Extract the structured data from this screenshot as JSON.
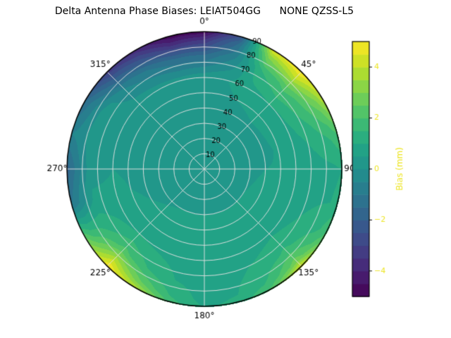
{
  "chart_data": {
    "type": "heatmap",
    "projection": "polar",
    "title": "Delta Antenna Phase Biases: LEIAT504GG      NONE QZSS-L5",
    "azimuth_tick_labels": [
      "0°",
      "45°",
      "90°",
      "135°",
      "180°",
      "225°",
      "270°",
      "315°"
    ],
    "azimuth_tick_angles": [
      0,
      45,
      90,
      135,
      180,
      225,
      270,
      315
    ],
    "radial_tick_labels": [
      "10",
      "20",
      "30",
      "40",
      "50",
      "60",
      "70",
      "80",
      "90"
    ],
    "radial_tick_values": [
      10,
      20,
      30,
      40,
      50,
      60,
      70,
      80,
      90
    ],
    "radial_range": [
      0,
      90
    ],
    "radial_label_angle_deg": 22.5,
    "grid_on": true,
    "colorbar": {
      "label": "Bias (mm)",
      "tick_labels": [
        "−4",
        "−2",
        "0",
        "2",
        "4"
      ],
      "tick_values": [
        -4,
        -2,
        0,
        2,
        4
      ],
      "range": [
        -5,
        5
      ],
      "level_step": 0.5,
      "position": "right"
    },
    "colormap": {
      "name": "viridis",
      "stops": [
        "#440154",
        "#482475",
        "#414487",
        "#355f8d",
        "#2a788e",
        "#21918c",
        "#22a884",
        "#44bf70",
        "#7ad151",
        "#bddf26",
        "#fde725"
      ]
    },
    "grid": {
      "azimuth_deg": [
        0,
        15,
        30,
        45,
        60,
        75,
        90,
        105,
        120,
        135,
        150,
        165,
        180,
        195,
        210,
        225,
        240,
        255,
        270,
        285,
        300,
        315,
        330,
        345,
        360
      ],
      "radius": [
        0,
        20,
        40,
        60,
        75,
        85,
        90
      ],
      "bias_mm": [
        [
          0.3,
          0.3,
          0.3,
          0.3,
          0.3,
          0.3,
          0.3,
          0.3,
          0.3,
          0.3,
          0.3,
          0.3,
          0.3,
          0.3,
          0.3,
          0.3,
          0.3,
          0.3,
          0.3,
          0.3,
          0.3,
          0.3,
          0.3,
          0.3,
          0.3
        ],
        [
          0.3,
          0.3,
          0.3,
          0.3,
          0.3,
          0.3,
          0.3,
          0.3,
          0.3,
          0.3,
          0.3,
          0.3,
          0.3,
          0.3,
          0.3,
          0.3,
          0.3,
          0.3,
          0.3,
          0.3,
          0.3,
          0.3,
          0.3,
          0.3,
          0.3
        ],
        [
          0.3,
          0.3,
          0.3,
          0.4,
          0.4,
          0.4,
          0.5,
          0.6,
          0.7,
          0.7,
          0.7,
          0.7,
          0.7,
          0.7,
          0.7,
          0.6,
          0.5,
          0.4,
          0.4,
          0.3,
          0.3,
          0.3,
          0.3,
          0.3,
          0.3
        ],
        [
          0.4,
          0.5,
          0.8,
          1.0,
          0.9,
          0.7,
          0.6,
          0.7,
          0.8,
          0.9,
          0.8,
          0.8,
          0.8,
          0.8,
          0.9,
          1.0,
          0.8,
          0.6,
          0.5,
          0.4,
          0.4,
          0.3,
          0.3,
          0.3,
          0.4
        ],
        [
          -1.5,
          -0.5,
          1.5,
          2.2,
          1.8,
          1.2,
          0.8,
          0.9,
          1.2,
          1.6,
          1.2,
          0.9,
          0.8,
          1.0,
          1.5,
          2.2,
          1.4,
          0.6,
          0.3,
          0.4,
          0.3,
          -0.5,
          -1.0,
          -1.5,
          -1.5
        ],
        [
          -3.5,
          -1.5,
          3.2,
          4.2,
          2.8,
          1.6,
          0.9,
          1.0,
          1.6,
          2.8,
          1.6,
          1.0,
          0.8,
          1.4,
          2.6,
          4.2,
          1.8,
          -0.5,
          -1.0,
          -0.3,
          -0.8,
          -2.2,
          -2.8,
          -3.8,
          -3.5
        ],
        [
          -4.8,
          -2.5,
          4.5,
          5.0,
          3.8,
          2.0,
          1.0,
          1.2,
          2.2,
          4.5,
          2.2,
          1.2,
          0.9,
          1.8,
          3.8,
          5.0,
          2.5,
          -1.0,
          -1.8,
          -0.5,
          -1.5,
          -3.2,
          -3.8,
          -4.8,
          -4.8
        ]
      ]
    }
  }
}
